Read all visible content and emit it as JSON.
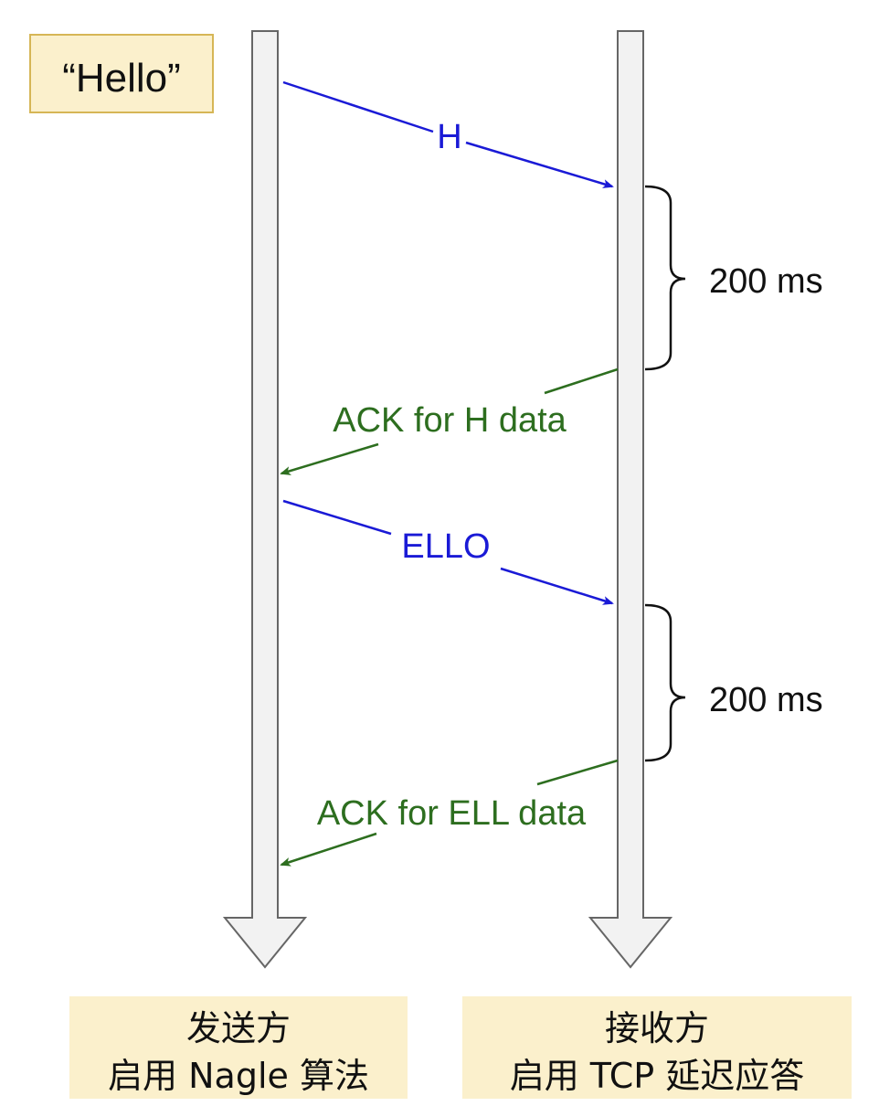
{
  "message_box": {
    "text": "“Hello”"
  },
  "messages": {
    "send_h": "H",
    "ack_h": "ACK for H data",
    "send_ello": "ELLO",
    "ack_ell": "ACK for ELL data"
  },
  "delays": {
    "first": "200 ms",
    "second": "200 ms"
  },
  "sender": {
    "line1": "发送方",
    "line2": "启用 Nagle 算法"
  },
  "receiver": {
    "line1": "接收方",
    "line2": "启用 TCP 延迟应答"
  },
  "colors": {
    "send_arrow": "#1a1ad6",
    "ack_arrow": "#2d6e1f",
    "label_fill": "#fbf0cc",
    "label_stroke": "#d6b656",
    "lifeline_fill": "#f2f2f2",
    "lifeline_stroke": "#666666"
  }
}
